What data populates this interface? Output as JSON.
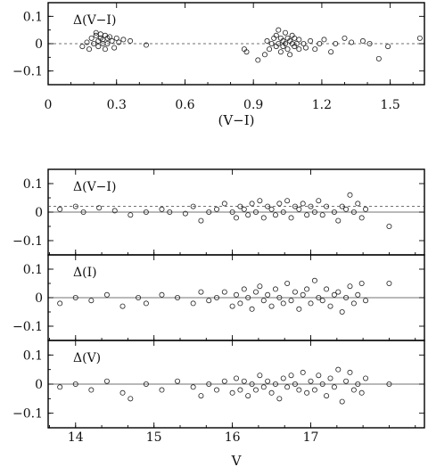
{
  "chart_data": [
    {
      "type": "scatter",
      "panel_label": "Δ(V−I)",
      "xlabel": "(V−I)",
      "ylabel": "",
      "xlim": [
        0.0,
        1.65
      ],
      "ylim": [
        -0.15,
        0.15
      ],
      "xticks": [
        0,
        0.3,
        0.6,
        0.9,
        1.2,
        1.5
      ],
      "xtick_labels": [
        "0",
        "0.3",
        "0.6",
        "0.9",
        "1.2",
        "1.5"
      ],
      "yticks": [
        0.1,
        0.0,
        -0.1
      ],
      "ytick_labels": [
        "0.1",
        "0",
        "−0.1"
      ],
      "reference_line": {
        "y": 0,
        "style": "dashed"
      },
      "points": [
        [
          0.15,
          -0.01
        ],
        [
          0.17,
          0.005
        ],
        [
          0.18,
          -0.02
        ],
        [
          0.19,
          0.02
        ],
        [
          0.2,
          0.0
        ],
        [
          0.21,
          0.03
        ],
        [
          0.21,
          0.04
        ],
        [
          0.22,
          0.01
        ],
        [
          0.22,
          -0.01
        ],
        [
          0.23,
          0.02
        ],
        [
          0.23,
          0.035
        ],
        [
          0.24,
          0.0
        ],
        [
          0.24,
          0.015
        ],
        [
          0.25,
          0.03
        ],
        [
          0.25,
          -0.02
        ],
        [
          0.26,
          0.02
        ],
        [
          0.26,
          0.0
        ],
        [
          0.27,
          0.025
        ],
        [
          0.28,
          0.01
        ],
        [
          0.29,
          -0.015
        ],
        [
          0.3,
          0.02
        ],
        [
          0.31,
          0.005
        ],
        [
          0.33,
          0.015
        ],
        [
          0.36,
          0.01
        ],
        [
          0.43,
          -0.005
        ],
        [
          0.86,
          -0.02
        ],
        [
          0.87,
          -0.03
        ],
        [
          0.92,
          -0.06
        ],
        [
          0.95,
          -0.04
        ],
        [
          0.96,
          0.01
        ],
        [
          0.97,
          -0.02
        ],
        [
          0.98,
          0.0
        ],
        [
          0.99,
          0.02
        ],
        [
          1.0,
          -0.01
        ],
        [
          1.0,
          0.03
        ],
        [
          1.01,
          0.05
        ],
        [
          1.01,
          0.0
        ],
        [
          1.02,
          -0.03
        ],
        [
          1.02,
          0.02
        ],
        [
          1.03,
          0.01
        ],
        [
          1.03,
          -0.01
        ],
        [
          1.04,
          0.04
        ],
        [
          1.04,
          0.0
        ],
        [
          1.05,
          -0.02
        ],
        [
          1.05,
          0.02
        ],
        [
          1.06,
          0.01
        ],
        [
          1.06,
          -0.04
        ],
        [
          1.07,
          0.0
        ],
        [
          1.07,
          0.03
        ],
        [
          1.08,
          -0.01
        ],
        [
          1.08,
          0.02
        ],
        [
          1.09,
          0.0
        ],
        [
          1.1,
          -0.02
        ],
        [
          1.1,
          0.015
        ],
        [
          1.12,
          0.0
        ],
        [
          1.13,
          -0.015
        ],
        [
          1.15,
          0.01
        ],
        [
          1.17,
          -0.02
        ],
        [
          1.19,
          0.0
        ],
        [
          1.21,
          0.015
        ],
        [
          1.24,
          -0.03
        ],
        [
          1.26,
          0.0
        ],
        [
          1.3,
          0.02
        ],
        [
          1.33,
          0.005
        ],
        [
          1.38,
          0.01
        ],
        [
          1.41,
          0.0
        ],
        [
          1.45,
          -0.055
        ],
        [
          1.49,
          -0.01
        ],
        [
          1.63,
          0.02
        ]
      ]
    },
    {
      "type": "scatter",
      "panel_label": "Δ(V−I)",
      "xlabel": "",
      "ylabel": "",
      "xlim": [
        13.65,
        18.45
      ],
      "ylim": [
        -0.15,
        0.15
      ],
      "xticks": [
        14,
        15,
        16,
        17
      ],
      "xtick_labels": [],
      "yticks": [
        0.1,
        0.0,
        -0.1
      ],
      "ytick_labels": [
        "0.1",
        "0",
        "−0.1"
      ],
      "reference_line": {
        "y": 0,
        "style": "solid"
      },
      "reference_line_2": {
        "y": 0.02,
        "style": "dashed"
      },
      "points": [
        [
          13.8,
          0.01
        ],
        [
          14.0,
          0.02
        ],
        [
          14.1,
          0.0
        ],
        [
          14.3,
          0.015
        ],
        [
          14.5,
          0.005
        ],
        [
          14.7,
          -0.01
        ],
        [
          14.9,
          0.0
        ],
        [
          15.1,
          0.01
        ],
        [
          15.2,
          0.0
        ],
        [
          15.4,
          -0.005
        ],
        [
          15.5,
          0.02
        ],
        [
          15.6,
          -0.03
        ],
        [
          15.7,
          0.0
        ],
        [
          15.8,
          0.01
        ],
        [
          15.9,
          0.03
        ],
        [
          16.0,
          0.0
        ],
        [
          16.05,
          -0.02
        ],
        [
          16.1,
          0.02
        ],
        [
          16.15,
          0.01
        ],
        [
          16.2,
          -0.01
        ],
        [
          16.25,
          0.03
        ],
        [
          16.3,
          0.0
        ],
        [
          16.35,
          0.04
        ],
        [
          16.4,
          -0.02
        ],
        [
          16.45,
          0.02
        ],
        [
          16.5,
          0.01
        ],
        [
          16.55,
          -0.01
        ],
        [
          16.6,
          0.03
        ],
        [
          16.65,
          0.0
        ],
        [
          16.7,
          0.04
        ],
        [
          16.75,
          -0.02
        ],
        [
          16.8,
          0.02
        ],
        [
          16.85,
          0.01
        ],
        [
          16.9,
          0.03
        ],
        [
          16.95,
          -0.01
        ],
        [
          17.0,
          0.02
        ],
        [
          17.05,
          0.0
        ],
        [
          17.1,
          0.04
        ],
        [
          17.15,
          -0.01
        ],
        [
          17.2,
          0.02
        ],
        [
          17.3,
          0.0
        ],
        [
          17.35,
          -0.03
        ],
        [
          17.4,
          0.02
        ],
        [
          17.45,
          0.01
        ],
        [
          17.5,
          0.06
        ],
        [
          17.55,
          0.0
        ],
        [
          17.6,
          0.03
        ],
        [
          17.65,
          -0.02
        ],
        [
          17.7,
          0.01
        ],
        [
          18.0,
          -0.05
        ]
      ]
    },
    {
      "type": "scatter",
      "panel_label": "Δ(I)",
      "xlabel": "",
      "ylabel": "",
      "xlim": [
        13.65,
        18.45
      ],
      "ylim": [
        -0.15,
        0.15
      ],
      "xticks": [
        14,
        15,
        16,
        17
      ],
      "xtick_labels": [],
      "yticks": [
        0.1,
        0.0,
        -0.1
      ],
      "ytick_labels": [
        "0.1",
        "0",
        "−0.1"
      ],
      "reference_line": {
        "y": 0,
        "style": "solid"
      },
      "points": [
        [
          13.8,
          -0.02
        ],
        [
          14.0,
          0.0
        ],
        [
          14.2,
          -0.01
        ],
        [
          14.4,
          0.01
        ],
        [
          14.6,
          -0.03
        ],
        [
          14.8,
          0.0
        ],
        [
          14.9,
          -0.02
        ],
        [
          15.1,
          0.01
        ],
        [
          15.3,
          0.0
        ],
        [
          15.5,
          -0.02
        ],
        [
          15.6,
          0.02
        ],
        [
          15.7,
          -0.01
        ],
        [
          15.8,
          0.0
        ],
        [
          15.9,
          0.02
        ],
        [
          16.0,
          -0.03
        ],
        [
          16.05,
          0.01
        ],
        [
          16.1,
          -0.02
        ],
        [
          16.15,
          0.03
        ],
        [
          16.2,
          0.0
        ],
        [
          16.25,
          -0.04
        ],
        [
          16.3,
          0.02
        ],
        [
          16.35,
          0.04
        ],
        [
          16.4,
          -0.01
        ],
        [
          16.45,
          0.01
        ],
        [
          16.5,
          -0.03
        ],
        [
          16.55,
          0.03
        ],
        [
          16.6,
          0.0
        ],
        [
          16.65,
          -0.02
        ],
        [
          16.7,
          0.05
        ],
        [
          16.75,
          -0.01
        ],
        [
          16.8,
          0.02
        ],
        [
          16.85,
          -0.04
        ],
        [
          16.9,
          0.01
        ],
        [
          16.95,
          0.03
        ],
        [
          17.0,
          -0.02
        ],
        [
          17.05,
          0.06
        ],
        [
          17.1,
          0.0
        ],
        [
          17.15,
          -0.01
        ],
        [
          17.2,
          0.03
        ],
        [
          17.25,
          -0.03
        ],
        [
          17.3,
          0.01
        ],
        [
          17.35,
          0.02
        ],
        [
          17.4,
          -0.05
        ],
        [
          17.45,
          0.0
        ],
        [
          17.5,
          0.04
        ],
        [
          17.55,
          -0.02
        ],
        [
          17.6,
          0.01
        ],
        [
          17.65,
          0.05
        ],
        [
          17.7,
          -0.01
        ],
        [
          18.0,
          0.05
        ]
      ]
    },
    {
      "type": "scatter",
      "panel_label": "Δ(V)",
      "xlabel": "V",
      "ylabel": "",
      "xlim": [
        13.65,
        18.45
      ],
      "ylim": [
        -0.15,
        0.15
      ],
      "xticks": [
        14,
        15,
        16,
        17
      ],
      "xtick_labels": [
        "14",
        "15",
        "16",
        "17"
      ],
      "yticks": [
        0.1,
        0.0,
        -0.1
      ],
      "ytick_labels": [
        "0.1",
        "0",
        "−0.1"
      ],
      "reference_line": {
        "y": 0,
        "style": "solid"
      },
      "points": [
        [
          13.8,
          -0.01
        ],
        [
          14.0,
          0.0
        ],
        [
          14.2,
          -0.02
        ],
        [
          14.4,
          0.01
        ],
        [
          14.6,
          -0.03
        ],
        [
          14.7,
          -0.05
        ],
        [
          14.9,
          0.0
        ],
        [
          15.1,
          -0.02
        ],
        [
          15.3,
          0.01
        ],
        [
          15.5,
          -0.01
        ],
        [
          15.6,
          -0.04
        ],
        [
          15.7,
          0.0
        ],
        [
          15.8,
          -0.02
        ],
        [
          15.9,
          0.01
        ],
        [
          16.0,
          -0.03
        ],
        [
          16.05,
          0.02
        ],
        [
          16.1,
          -0.02
        ],
        [
          16.15,
          0.01
        ],
        [
          16.2,
          -0.04
        ],
        [
          16.25,
          0.0
        ],
        [
          16.3,
          -0.02
        ],
        [
          16.35,
          0.03
        ],
        [
          16.4,
          -0.01
        ],
        [
          16.45,
          0.01
        ],
        [
          16.5,
          -0.03
        ],
        [
          16.55,
          0.0
        ],
        [
          16.6,
          -0.05
        ],
        [
          16.65,
          0.02
        ],
        [
          16.7,
          -0.01
        ],
        [
          16.75,
          0.03
        ],
        [
          16.8,
          0.0
        ],
        [
          16.85,
          -0.02
        ],
        [
          16.9,
          0.04
        ],
        [
          16.95,
          -0.03
        ],
        [
          17.0,
          0.01
        ],
        [
          17.05,
          -0.02
        ],
        [
          17.1,
          0.03
        ],
        [
          17.15,
          0.0
        ],
        [
          17.2,
          -0.04
        ],
        [
          17.25,
          0.02
        ],
        [
          17.3,
          -0.01
        ],
        [
          17.35,
          0.05
        ],
        [
          17.4,
          -0.06
        ],
        [
          17.45,
          0.01
        ],
        [
          17.5,
          0.04
        ],
        [
          17.55,
          -0.02
        ],
        [
          17.6,
          0.0
        ],
        [
          17.65,
          -0.03
        ],
        [
          17.7,
          0.02
        ],
        [
          18.0,
          0.0
        ]
      ]
    }
  ]
}
